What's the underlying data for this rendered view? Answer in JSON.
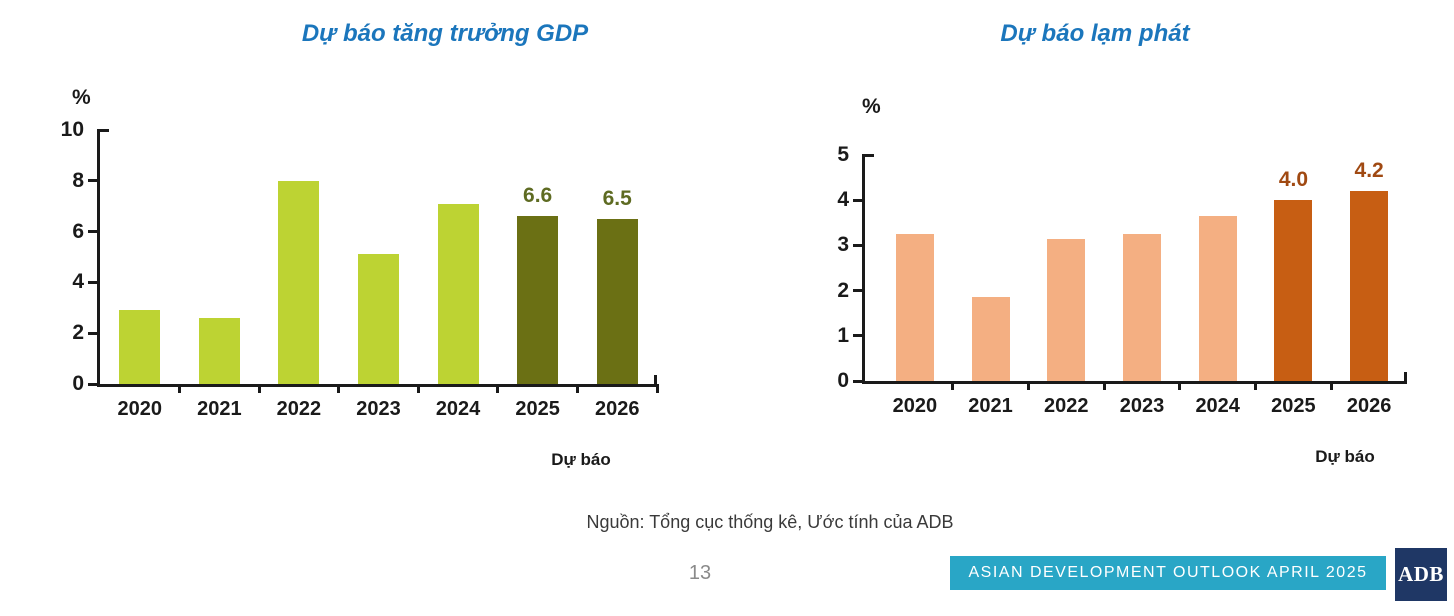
{
  "page": {
    "page_number": "13",
    "source": "Nguồn: Tổng cục thống kê, Ước tính của ADB",
    "footer_banner": "ASIAN DEVELOPMENT OUTLOOK APRIL 2025",
    "logo_text": "ADB",
    "colors": {
      "title_blue": "#1B76BC",
      "banner_teal": "#29A6C6",
      "logo_navy": "#1F3765",
      "axis_black": "#1A1A1A"
    }
  },
  "chart_data": [
    {
      "type": "bar",
      "title": "Dự báo tăng trưởng GDP",
      "unit_label": "%",
      "categories": [
        "2020",
        "2021",
        "2022",
        "2023",
        "2024",
        "2025",
        "2026"
      ],
      "values": [
        2.9,
        2.6,
        8.0,
        5.1,
        7.1,
        6.6,
        6.5
      ],
      "value_labels": [
        null,
        null,
        null,
        null,
        null,
        "6.6",
        "6.5"
      ],
      "ylim": [
        0,
        10
      ],
      "yticks": [
        0,
        2,
        4,
        6,
        8,
        10
      ],
      "grid": false,
      "legend": "none",
      "forecast_from_index": 5,
      "forecast_label": "Dự báo",
      "bar_color": "#BDD333",
      "forecast_bar_color": "#6B7014",
      "value_label_color": "#5E6B22"
    },
    {
      "type": "bar",
      "title": "Dự báo lạm phát",
      "unit_label": "%",
      "categories": [
        "2020",
        "2021",
        "2022",
        "2023",
        "2024",
        "2025",
        "2026"
      ],
      "values": [
        3.25,
        1.85,
        3.15,
        3.25,
        3.65,
        4.0,
        4.2
      ],
      "value_labels": [
        null,
        null,
        null,
        null,
        null,
        "4.0",
        "4.2"
      ],
      "ylim": [
        0,
        5
      ],
      "yticks": [
        0,
        1,
        2,
        3,
        4,
        5
      ],
      "grid": false,
      "legend": "none",
      "forecast_from_index": 5,
      "forecast_label": "Dự báo",
      "bar_color": "#F4AF82",
      "forecast_bar_color": "#C75E13",
      "value_label_color": "#A04912"
    }
  ]
}
